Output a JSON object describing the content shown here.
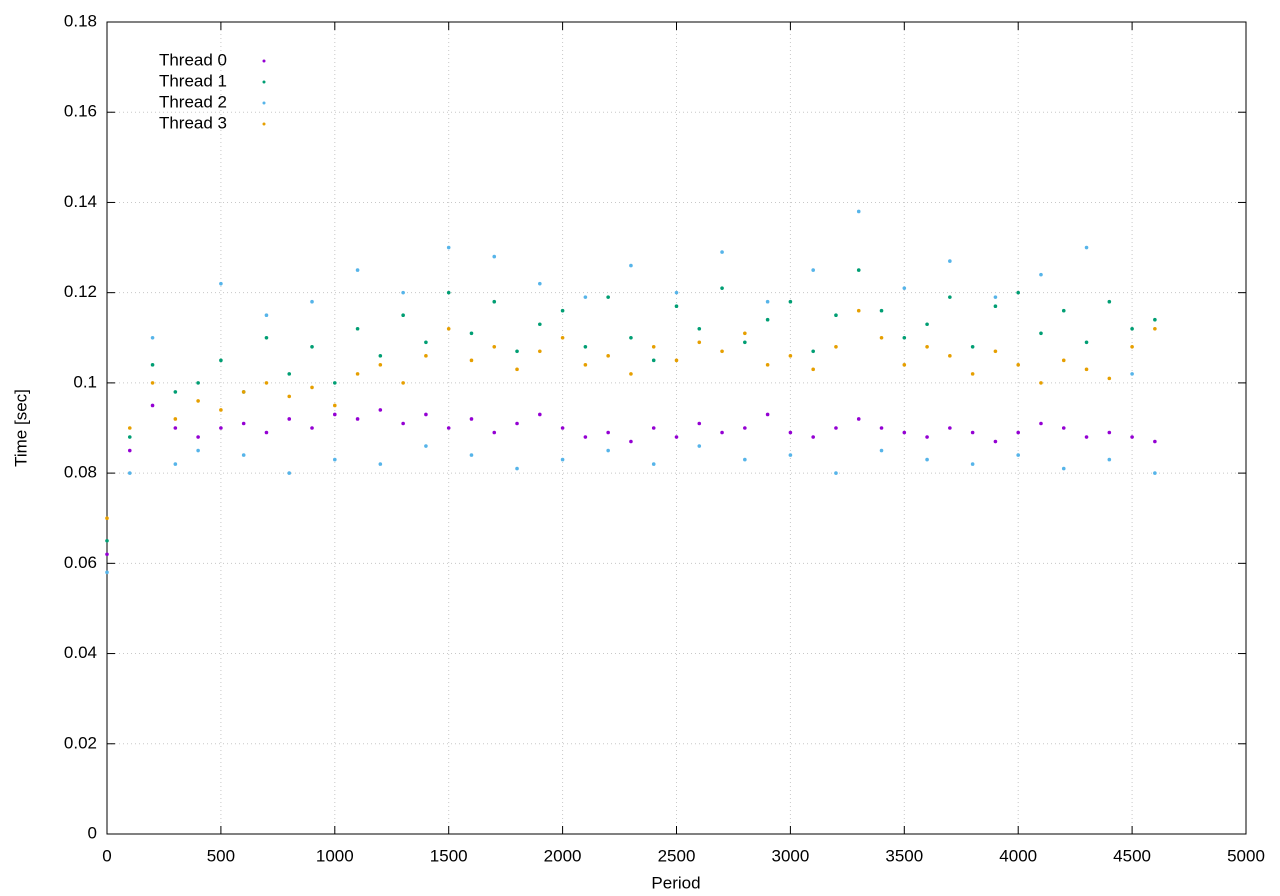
{
  "chart_data": {
    "type": "scatter",
    "x_label": "Period",
    "y_label": "Time [sec]",
    "xlim": [
      0,
      5000
    ],
    "xticks": [
      0,
      500,
      1000,
      1500,
      2000,
      2500,
      3000,
      3500,
      4000,
      4500,
      5000
    ],
    "ylim": [
      0,
      0.18
    ],
    "yticks": [
      0,
      0.02,
      0.04,
      0.06,
      0.08,
      0.1,
      0.12,
      0.14,
      0.16,
      0.18
    ],
    "grid": true,
    "legend": "top-left",
    "x": [
      0,
      100,
      200,
      300,
      400,
      500,
      600,
      700,
      800,
      900,
      1000,
      1100,
      1200,
      1300,
      1400,
      1500,
      1600,
      1700,
      1800,
      1900,
      2000,
      2100,
      2200,
      2300,
      2400,
      2500,
      2600,
      2700,
      2800,
      2900,
      3000,
      3100,
      3200,
      3300,
      3400,
      3500,
      3600,
      3700,
      3800,
      3900,
      4000,
      4100,
      4200,
      4300,
      4400,
      4500,
      4600
    ],
    "series": [
      {
        "name": "Thread 0",
        "color": "#9400d3",
        "values": [
          0.062,
          0.085,
          0.095,
          0.09,
          0.088,
          0.09,
          0.091,
          0.089,
          0.092,
          0.09,
          0.093,
          0.092,
          0.094,
          0.091,
          0.093,
          0.09,
          0.092,
          0.089,
          0.091,
          0.093,
          0.09,
          0.088,
          0.089,
          0.087,
          0.09,
          0.088,
          0.091,
          0.089,
          0.09,
          0.093,
          0.089,
          0.088,
          0.09,
          0.092,
          0.09,
          0.089,
          0.088,
          0.09,
          0.089,
          0.087,
          0.089,
          0.091,
          0.09,
          0.088,
          0.089,
          0.088,
          0.087
        ]
      },
      {
        "name": "Thread 1",
        "color": "#009e73",
        "values": [
          0.065,
          0.088,
          0.104,
          0.098,
          0.1,
          0.105,
          0.098,
          0.11,
          0.102,
          0.108,
          0.1,
          0.112,
          0.106,
          0.115,
          0.109,
          0.12,
          0.111,
          0.118,
          0.107,
          0.113,
          0.116,
          0.108,
          0.119,
          0.11,
          0.105,
          0.117,
          0.112,
          0.121,
          0.109,
          0.114,
          0.118,
          0.107,
          0.115,
          0.125,
          0.116,
          0.11,
          0.113,
          0.119,
          0.108,
          0.117,
          0.12,
          0.111,
          0.116,
          0.109,
          0.118,
          0.112,
          0.114
        ]
      },
      {
        "name": "Thread 2",
        "color": "#56b4e9",
        "values": [
          0.058,
          0.08,
          0.11,
          0.082,
          0.085,
          0.122,
          0.084,
          0.115,
          0.08,
          0.118,
          0.083,
          0.125,
          0.082,
          0.12,
          0.086,
          0.13,
          0.084,
          0.128,
          0.081,
          0.122,
          0.083,
          0.119,
          0.085,
          0.126,
          0.082,
          0.12,
          0.086,
          0.129,
          0.083,
          0.118,
          0.084,
          0.125,
          0.08,
          0.138,
          0.085,
          0.121,
          0.083,
          0.127,
          0.082,
          0.119,
          0.084,
          0.124,
          0.081,
          0.13,
          0.083,
          0.102,
          0.08
        ]
      },
      {
        "name": "Thread 3",
        "color": "#e69f00",
        "values": [
          0.07,
          0.09,
          0.1,
          0.092,
          0.096,
          0.094,
          0.098,
          0.1,
          0.097,
          0.099,
          0.095,
          0.102,
          0.104,
          0.1,
          0.106,
          0.112,
          0.105,
          0.108,
          0.103,
          0.107,
          0.11,
          0.104,
          0.106,
          0.102,
          0.108,
          0.105,
          0.109,
          0.107,
          0.111,
          0.104,
          0.106,
          0.103,
          0.108,
          0.116,
          0.11,
          0.104,
          0.108,
          0.106,
          0.102,
          0.107,
          0.104,
          0.1,
          0.105,
          0.103,
          0.101,
          0.108,
          0.112
        ]
      }
    ]
  }
}
